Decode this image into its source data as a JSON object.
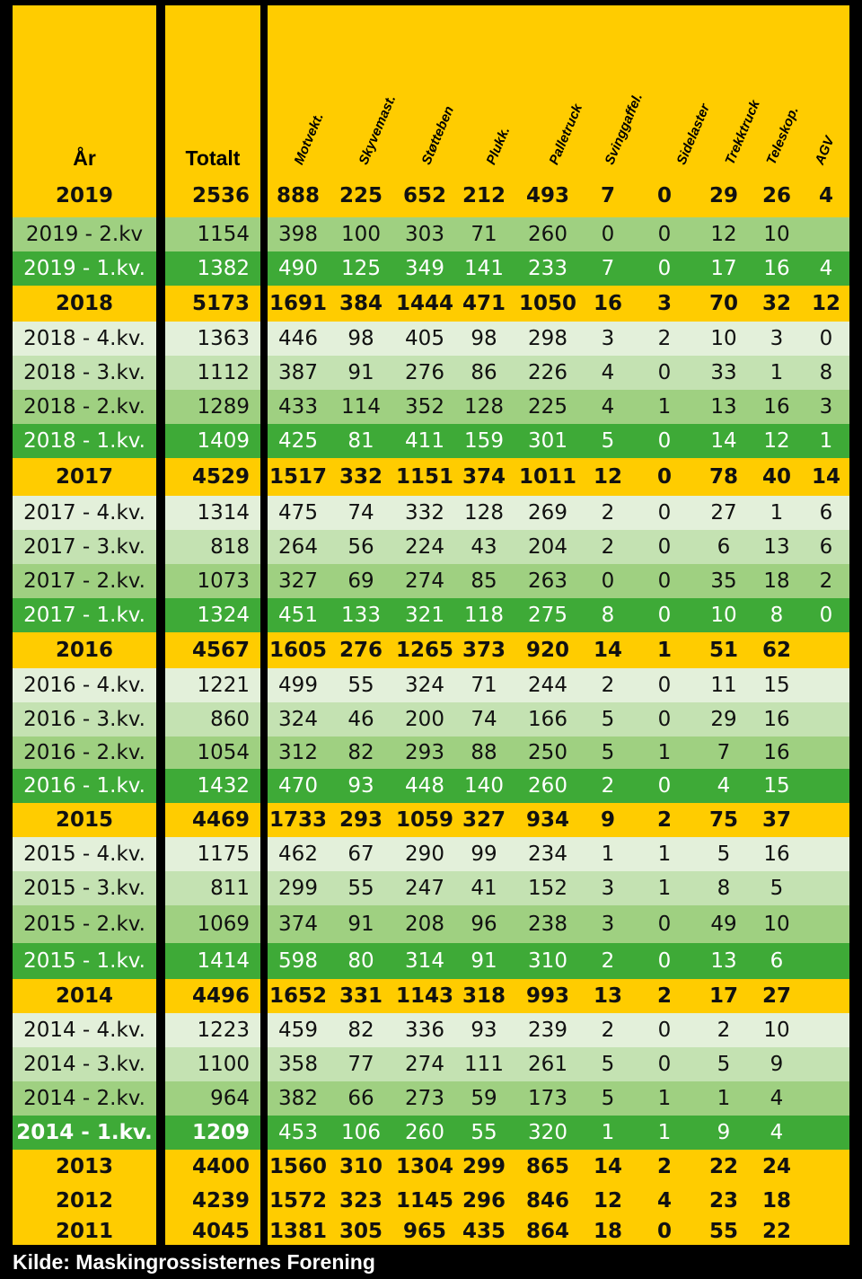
{
  "header": {
    "year_label": "År",
    "total_label": "Totalt",
    "columns": [
      "Motvekt.",
      "Skyvemast.",
      "Støtteben",
      "Plukk.",
      "Palletruck",
      "Svinggaffel.",
      "Sidelaster",
      "Trekktruck",
      "Teleskop.",
      "AGV"
    ]
  },
  "rows": [
    {
      "type": "year",
      "label": "2019",
      "total": "2536",
      "values": [
        "888",
        "225",
        "652",
        "212",
        "493",
        "7",
        "0",
        "29",
        "26",
        "4"
      ]
    },
    {
      "type": "q2",
      "label": "2019 - 2.kv",
      "total": "1154",
      "values": [
        "398",
        "100",
        "303",
        "71",
        "260",
        "0",
        "0",
        "12",
        "10",
        ""
      ]
    },
    {
      "type": "q1",
      "label": "2019 - 1.kv.",
      "total": "1382",
      "values": [
        "490",
        "125",
        "349",
        "141",
        "233",
        "7",
        "0",
        "17",
        "16",
        "4"
      ]
    },
    {
      "type": "year",
      "label": "2018",
      "total": "5173",
      "values": [
        "1691",
        "384",
        "1444",
        "471",
        "1050",
        "16",
        "3",
        "70",
        "32",
        "12"
      ]
    },
    {
      "type": "q4",
      "label": "2018 - 4.kv.",
      "total": "1363",
      "values": [
        "446",
        "98",
        "405",
        "98",
        "298",
        "3",
        "2",
        "10",
        "3",
        "0"
      ]
    },
    {
      "type": "q3",
      "label": "2018 - 3.kv.",
      "total": "1112",
      "values": [
        "387",
        "91",
        "276",
        "86",
        "226",
        "4",
        "0",
        "33",
        "1",
        "8"
      ]
    },
    {
      "type": "q2",
      "label": "2018 - 2.kv.",
      "total": "1289",
      "values": [
        "433",
        "114",
        "352",
        "128",
        "225",
        "4",
        "1",
        "13",
        "16",
        "3"
      ]
    },
    {
      "type": "q1",
      "label": "2018 - 1.kv.",
      "total": "1409",
      "values": [
        "425",
        "81",
        "411",
        "159",
        "301",
        "5",
        "0",
        "14",
        "12",
        "1"
      ]
    },
    {
      "type": "year",
      "label": "2017",
      "total": "4529",
      "values": [
        "1517",
        "332",
        "1151",
        "374",
        "1011",
        "12",
        "0",
        "78",
        "40",
        "14"
      ]
    },
    {
      "type": "q4",
      "label": "2017 - 4.kv.",
      "total": "1314",
      "values": [
        "475",
        "74",
        "332",
        "128",
        "269",
        "2",
        "0",
        "27",
        "1",
        "6"
      ]
    },
    {
      "type": "q3",
      "label": "2017 - 3.kv.",
      "total": "818",
      "values": [
        "264",
        "56",
        "224",
        "43",
        "204",
        "2",
        "0",
        "6",
        "13",
        "6"
      ]
    },
    {
      "type": "q2",
      "label": "2017 - 2.kv.",
      "total": "1073",
      "values": [
        "327",
        "69",
        "274",
        "85",
        "263",
        "0",
        "0",
        "35",
        "18",
        "2"
      ]
    },
    {
      "type": "q1",
      "label": "2017 - 1.kv.",
      "total": "1324",
      "values": [
        "451",
        "133",
        "321",
        "118",
        "275",
        "8",
        "0",
        "10",
        "8",
        "0"
      ]
    },
    {
      "type": "year",
      "label": "2016",
      "total": "4567",
      "values": [
        "1605",
        "276",
        "1265",
        "373",
        "920",
        "14",
        "1",
        "51",
        "62",
        ""
      ]
    },
    {
      "type": "q4",
      "label": "2016 - 4.kv.",
      "total": "1221",
      "values": [
        "499",
        "55",
        "324",
        "71",
        "244",
        "2",
        "0",
        "11",
        "15",
        ""
      ]
    },
    {
      "type": "q3",
      "label": "2016 - 3.kv.",
      "total": "860",
      "values": [
        "324",
        "46",
        "200",
        "74",
        "166",
        "5",
        "0",
        "29",
        "16",
        ""
      ]
    },
    {
      "type": "q2",
      "label": "2016 - 2.kv.",
      "total": "1054",
      "values": [
        "312",
        "82",
        "293",
        "88",
        "250",
        "5",
        "1",
        "7",
        "16",
        ""
      ]
    },
    {
      "type": "q1",
      "label": "2016 - 1.kv.",
      "total": "1432",
      "values": [
        "470",
        "93",
        "448",
        "140",
        "260",
        "2",
        "0",
        "4",
        "15",
        ""
      ]
    },
    {
      "type": "year",
      "label": "2015",
      "total": "4469",
      "values": [
        "1733",
        "293",
        "1059",
        "327",
        "934",
        "9",
        "2",
        "75",
        "37",
        ""
      ]
    },
    {
      "type": "q4",
      "label": "2015 - 4.kv.",
      "total": "1175",
      "values": [
        "462",
        "67",
        "290",
        "99",
        "234",
        "1",
        "1",
        "5",
        "16",
        ""
      ]
    },
    {
      "type": "q3",
      "label": "2015 - 3.kv.",
      "total": "811",
      "values": [
        "299",
        "55",
        "247",
        "41",
        "152",
        "3",
        "1",
        "8",
        "5",
        ""
      ]
    },
    {
      "type": "q2",
      "label": "2015 - 2.kv.",
      "total": "1069",
      "values": [
        "374",
        "91",
        "208",
        "96",
        "238",
        "3",
        "0",
        "49",
        "10",
        ""
      ]
    },
    {
      "type": "q1",
      "label": "2015 - 1.kv.",
      "total": "1414",
      "values": [
        "598",
        "80",
        "314",
        "91",
        "310",
        "2",
        "0",
        "13",
        "6",
        ""
      ]
    },
    {
      "type": "year",
      "label": "2014",
      "total": "4496",
      "values": [
        "1652",
        "331",
        "1143",
        "318",
        "993",
        "13",
        "2",
        "17",
        "27",
        ""
      ]
    },
    {
      "type": "q4",
      "label": "2014 - 4.kv.",
      "total": "1223",
      "values": [
        "459",
        "82",
        "336",
        "93",
        "239",
        "2",
        "0",
        "2",
        "10",
        ""
      ]
    },
    {
      "type": "q3",
      "label": "2014 - 3.kv.",
      "total": "1100",
      "values": [
        "358",
        "77",
        "274",
        "111",
        "261",
        "5",
        "0",
        "5",
        "9",
        ""
      ]
    },
    {
      "type": "q2",
      "label": "2014 - 2.kv.",
      "total": "964",
      "values": [
        "382",
        "66",
        "273",
        "59",
        "173",
        "5",
        "1",
        "1",
        "4",
        ""
      ]
    },
    {
      "type": "q1b",
      "label": "2014 - 1.kv.",
      "total": "1209",
      "values": [
        "453",
        "106",
        "260",
        "55",
        "320",
        "1",
        "1",
        "9",
        "4",
        ""
      ]
    },
    {
      "type": "year",
      "label": "2013",
      "total": "4400",
      "values": [
        "1560",
        "310",
        "1304",
        "299",
        "865",
        "14",
        "2",
        "22",
        "24",
        ""
      ]
    },
    {
      "type": "year",
      "label": "2012",
      "total": "4239",
      "values": [
        "1572",
        "323",
        "1145",
        "296",
        "846",
        "12",
        "4",
        "23",
        "18",
        ""
      ]
    },
    {
      "type": "year",
      "label": "2011",
      "total": "4045",
      "values": [
        "1381",
        "305",
        "965",
        "435",
        "864",
        "18",
        "0",
        "55",
        "22",
        ""
      ]
    }
  ],
  "footer": "Kilde: Maskingrossisternes Forening",
  "colors": {
    "year": "#ffcc00",
    "q4": "#e3f0da",
    "q3": "#c4e2b2",
    "q2": "#9fd081",
    "q1": "#3eaa37",
    "q1_text": "#ffffff"
  }
}
